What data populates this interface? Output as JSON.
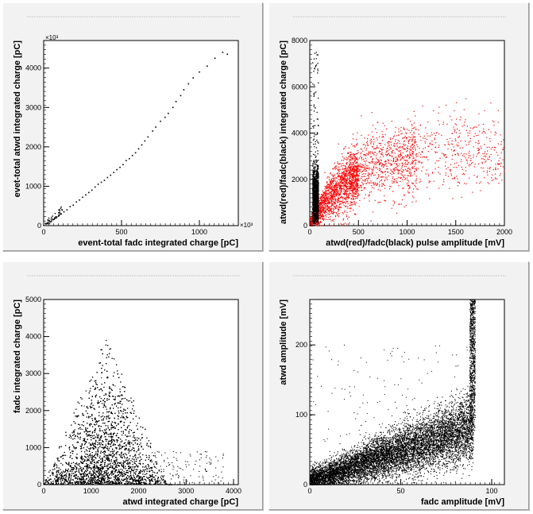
{
  "chart_data": [
    {
      "type": "scatter",
      "xlabel": "event-total fadc integrated charge [pC]",
      "ylabel": "evet-total atwd integrated charge [pC]",
      "x_multiplier": "×10³",
      "y_multiplier": "×10³",
      "xlim": [
        0,
        1250
      ],
      "ylim": [
        0,
        4700
      ],
      "xticks": [
        "0",
        "500",
        "1000"
      ],
      "yticks": [
        "0",
        "1000",
        "2000",
        "3000",
        "4000"
      ],
      "series": [
        {
          "color": "#000000",
          "points": [
            [
              15,
              40
            ],
            [
              22,
              60
            ],
            [
              30,
              80
            ],
            [
              40,
              100
            ],
            [
              50,
              120
            ],
            [
              60,
              150
            ],
            [
              70,
              180
            ],
            [
              85,
              220
            ],
            [
              100,
              260
            ],
            [
              110,
              300
            ],
            [
              130,
              350
            ],
            [
              150,
              400
            ],
            [
              170,
              480
            ],
            [
              190,
              520
            ],
            [
              210,
              600
            ],
            [
              230,
              650
            ],
            [
              250,
              720
            ],
            [
              270,
              780
            ],
            [
              290,
              840
            ],
            [
              310,
              900
            ],
            [
              330,
              980
            ],
            [
              350,
              1050
            ],
            [
              370,
              1100
            ],
            [
              390,
              1150
            ],
            [
              410,
              1220
            ],
            [
              430,
              1280
            ],
            [
              450,
              1350
            ],
            [
              470,
              1420
            ],
            [
              490,
              1480
            ],
            [
              510,
              1550
            ],
            [
              530,
              1650
            ],
            [
              550,
              1700
            ],
            [
              570,
              1780
            ],
            [
              590,
              1850
            ],
            [
              610,
              1950
            ],
            [
              630,
              2050
            ],
            [
              650,
              2150
            ],
            [
              670,
              2250
            ],
            [
              700,
              2400
            ],
            [
              720,
              2500
            ],
            [
              750,
              2650
            ],
            [
              780,
              2750
            ],
            [
              800,
              2850
            ],
            [
              830,
              3000
            ],
            [
              850,
              3150
            ],
            [
              880,
              3300
            ],
            [
              900,
              3450
            ],
            [
              930,
              3600
            ],
            [
              960,
              3750
            ],
            [
              1000,
              3900
            ],
            [
              1050,
              4050
            ],
            [
              1100,
              4250
            ],
            [
              1150,
              4400
            ],
            [
              1180,
              4350
            ]
          ]
        }
      ],
      "title": ""
    },
    {
      "type": "scatter",
      "xlabel": "atwd(red)/fadc(black) pulse amplitude [mV]",
      "ylabel": "atwd(red)/fadc(black) integrated charge [pC]",
      "xlim": [
        0,
        2000
      ],
      "ylim": [
        0,
        8000
      ],
      "xticks": [
        "0",
        "500",
        "1000",
        "1500",
        "2000"
      ],
      "yticks": [
        "0",
        "2000",
        "4000",
        "6000",
        "8000"
      ],
      "series": [
        {
          "name": "atwd",
          "color": "#ff0000",
          "trend": [
            [
              0,
              0
            ],
            [
              100,
              500
            ],
            [
              200,
              1100
            ],
            [
              300,
              1600
            ],
            [
              400,
              2000
            ],
            [
              500,
              2300
            ],
            [
              700,
              2700
            ],
            [
              1000,
              3000
            ],
            [
              1500,
              3100
            ],
            [
              2000,
              3200
            ]
          ],
          "count": 3000
        },
        {
          "name": "fadc",
          "color": "#000000",
          "x_range": [
            0,
            90
          ],
          "y_max": 7500,
          "count": 1200
        }
      ],
      "title": ""
    },
    {
      "type": "scatter",
      "xlabel": "atwd integrated charge [pC]",
      "ylabel": "fadc integrated charge [pC]",
      "xlim": [
        0,
        4100
      ],
      "ylim": [
        0,
        5000
      ],
      "xticks": [
        "0",
        "1000",
        "2000",
        "3000",
        "4000"
      ],
      "yticks": [
        "0",
        "1000",
        "2000",
        "3000",
        "4000",
        "5000"
      ],
      "series": [
        {
          "color": "#000000",
          "peak": [
            1300,
            4200
          ],
          "dense_region": [
            [
              0,
              0
            ],
            [
              2200,
              0
            ],
            [
              1500,
              2600
            ]
          ],
          "count": 9000
        }
      ],
      "title": ""
    },
    {
      "type": "scatter",
      "xlabel": "fadc amplitude [mV]",
      "ylabel": "atwd amplitude [mV]",
      "xlim": [
        0,
        107
      ],
      "ylim": [
        0,
        265
      ],
      "xticks": [
        "0",
        "50",
        "100"
      ],
      "yticks": [
        "0",
        "100",
        "200"
      ],
      "series": [
        {
          "color": "#000000",
          "trend": [
            [
              0,
              5
            ],
            [
              20,
              20
            ],
            [
              40,
              35
            ],
            [
              60,
              55
            ],
            [
              80,
              75
            ],
            [
              88,
              100
            ]
          ],
          "saturation_x": 90,
          "count": 9000
        }
      ],
      "title": ""
    }
  ]
}
